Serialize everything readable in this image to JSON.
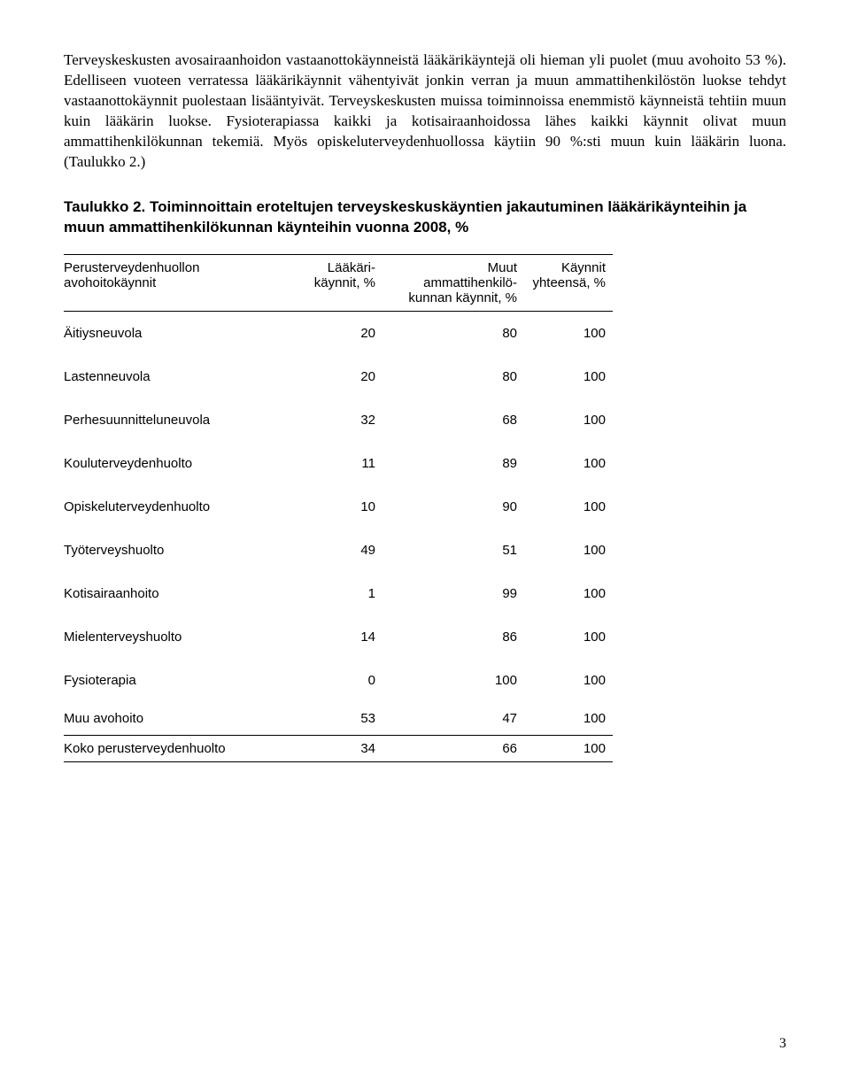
{
  "paragraph": "Terveyskeskusten avosairaanhoidon vastaanottokäynneistä lääkärikäyntejä oli hieman yli puolet (muu avohoito 53 %). Edelliseen vuoteen verratessa lääkärikäynnit vähentyivät jonkin verran ja muun ammattihenkilöstön luokse tehdyt vastaanottokäynnit puolestaan lisääntyivät. Terveyskeskusten muissa toiminnoissa enemmistö käynneistä tehtiin muun kuin lääkärin luokse. Fysioterapiassa kaikki ja kotisairaanhoidossa lähes kaikki käynnit olivat muun ammattihenkilökunnan tekemiä. Myös opiskeluterveydenhuollossa käytiin 90 %:sti muun kuin lääkärin luona. (Taulukko 2.)",
  "tableCaption": "Taulukko 2. Toiminnoittain eroteltujen terveyskeskuskäyntien jakautuminen lääkärikäynteihin ja muun ammattihenkilökunnan käynteihin vuonna 2008, %",
  "table": {
    "headers": {
      "col1_line1": "Perusterveydenhuollon",
      "col1_line2": "avohoitokäynnit",
      "col2_line1": "Lääkäri-",
      "col2_line2": "käynnit, %",
      "col3_line1": "Muut",
      "col3_line2": "ammattihenkilö-",
      "col3_line3": "kunnan käynnit, %",
      "col4_line1": "Käynnit",
      "col4_line2": "yhteensä, %"
    },
    "rows": [
      {
        "label": "Äitiysneuvola",
        "a": "20",
        "b": "80",
        "c": "100"
      },
      {
        "label": "Lastenneuvola",
        "a": "20",
        "b": "80",
        "c": "100"
      },
      {
        "label": "Perhesuunnitteluneuvola",
        "a": "32",
        "b": "68",
        "c": "100"
      },
      {
        "label": "Kouluterveydenhuolto",
        "a": "11",
        "b": "89",
        "c": "100"
      },
      {
        "label": "Opiskeluterveydenhuolto",
        "a": "10",
        "b": "90",
        "c": "100"
      },
      {
        "label": "Työterveyshuolto",
        "a": "49",
        "b": "51",
        "c": "100"
      },
      {
        "label": "Kotisairaanhoito",
        "a": "1",
        "b": "99",
        "c": "100"
      },
      {
        "label": "Mielenterveyshuolto",
        "a": "14",
        "b": "86",
        "c": "100"
      },
      {
        "label": "Fysioterapia",
        "a": "0",
        "b": "100",
        "c": "100"
      },
      {
        "label": "Muu avohoito",
        "a": "53",
        "b": "47",
        "c": "100"
      }
    ],
    "totalRow": {
      "label": "Koko perusterveydenhuolto",
      "a": "34",
      "b": "66",
      "c": "100"
    }
  },
  "pageNumber": "3"
}
